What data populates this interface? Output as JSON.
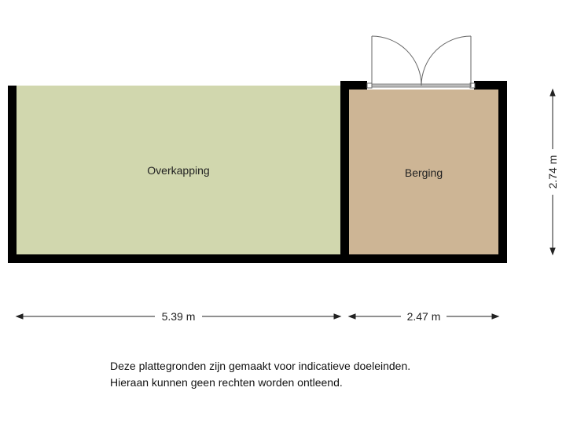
{
  "rooms": [
    {
      "name": "Overkapping",
      "color": "#d1d7ae"
    },
    {
      "name": "Berging",
      "color": "#cdb595"
    }
  ],
  "wall_color": "#000000",
  "dimensions": {
    "overkapping_width": "5.39 m",
    "berging_width": "2.47 m",
    "berging_depth": "2.74 m"
  },
  "disclaimer": {
    "line1": "Deze plattegronden zijn gemaakt voor indicatieve doeleinden.",
    "line2": "Hieraan kunnen geen rechten worden ontleend."
  }
}
